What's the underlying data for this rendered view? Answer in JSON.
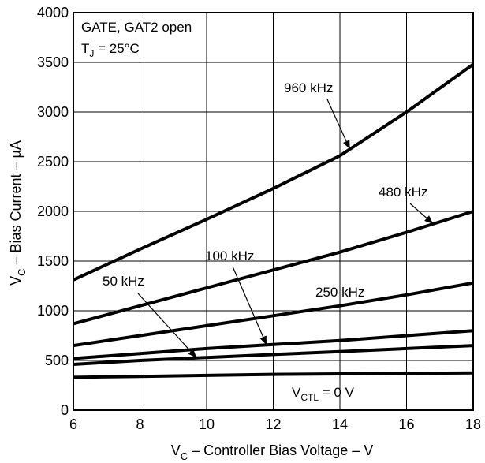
{
  "chart_data": {
    "type": "line",
    "xlabel": "V_C – Controller Bias Voltage – V",
    "xlabel_parts": {
      "main": "V",
      "sub": "C",
      "rest": " – Controller Bias Voltage – V"
    },
    "ylabel": "V_C – Bias Current – µA",
    "ylabel_parts": {
      "main": "V",
      "sub": "C",
      "rest": " – Bias Current – µA"
    },
    "xlim": [
      6,
      18
    ],
    "ylim": [
      0,
      4000
    ],
    "xticks": [
      6,
      8,
      10,
      12,
      14,
      16,
      18
    ],
    "yticks": [
      0,
      500,
      1000,
      1500,
      2000,
      2500,
      3000,
      3500,
      4000
    ],
    "grid": true,
    "conditions": {
      "line1": "GATE, GAT2 open",
      "line2_main": "T",
      "line2_sub": "J",
      "line2_rest": " = 25°C"
    },
    "series": [
      {
        "name": "960 kHz",
        "x": [
          6,
          8,
          10,
          12,
          14,
          16,
          18
        ],
        "y": [
          1310,
          1620,
          1920,
          2230,
          2560,
          3000,
          3480
        ]
      },
      {
        "name": "480 kHz",
        "x": [
          6,
          8,
          10,
          12,
          14,
          16,
          18
        ],
        "y": [
          870,
          1050,
          1230,
          1410,
          1590,
          1790,
          2000
        ]
      },
      {
        "name": "250 kHz",
        "x": [
          6,
          8,
          10,
          12,
          14,
          16,
          18
        ],
        "y": [
          650,
          750,
          850,
          950,
          1050,
          1160,
          1280
        ]
      },
      {
        "name": "100 kHz",
        "x": [
          6,
          8,
          10,
          12,
          14,
          16,
          18
        ],
        "y": [
          520,
          570,
          620,
          660,
          700,
          750,
          800
        ]
      },
      {
        "name": "50 kHz",
        "x": [
          6,
          8,
          10,
          12,
          14,
          16,
          18
        ],
        "y": [
          460,
          500,
          530,
          560,
          590,
          620,
          650
        ]
      },
      {
        "name": "V_CTL = 0 V",
        "x": [
          6,
          8,
          10,
          12,
          14,
          16,
          18
        ],
        "y": [
          330,
          340,
          350,
          360,
          365,
          370,
          375
        ]
      }
    ],
    "annotations": [
      {
        "series": "960 kHz",
        "label": "960 kHz"
      },
      {
        "series": "480 kHz",
        "label": "480 kHz"
      },
      {
        "series": "250 kHz",
        "label": "250 kHz"
      },
      {
        "series": "100 kHz",
        "label": "100 kHz"
      },
      {
        "series": "50 kHz",
        "label": "50 kHz"
      }
    ],
    "vctl_label": {
      "main": "V",
      "sub": "CTL",
      "rest": " = 0 V"
    }
  }
}
